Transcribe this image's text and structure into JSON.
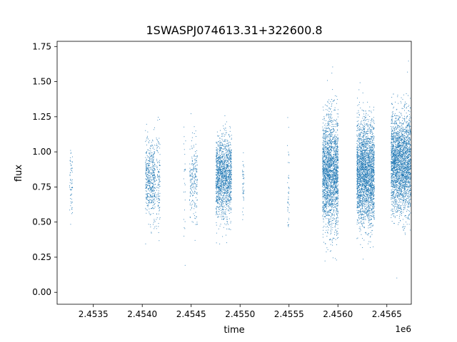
{
  "chart_data": {
    "type": "scatter",
    "title": "1SWASPJ074613.31+322600.8",
    "xlabel": "time",
    "ylabel": "flux",
    "x_offset_label": "1e6",
    "xlim": [
      2.45313,
      2.45675
    ],
    "ylim": [
      -0.085,
      1.787
    ],
    "x_ticks": [
      {
        "value": 2.4535,
        "label": "2.4535"
      },
      {
        "value": 2.454,
        "label": "2.4540"
      },
      {
        "value": 2.4545,
        "label": "2.4545"
      },
      {
        "value": 2.455,
        "label": "2.4550"
      },
      {
        "value": 2.4555,
        "label": "2.4555"
      },
      {
        "value": 2.456,
        "label": "2.4560"
      },
      {
        "value": 2.4565,
        "label": "2.4565"
      }
    ],
    "y_ticks": [
      {
        "value": 0.0,
        "label": "0.00"
      },
      {
        "value": 0.25,
        "label": "0.25"
      },
      {
        "value": 0.5,
        "label": "0.50"
      },
      {
        "value": 0.75,
        "label": "0.75"
      },
      {
        "value": 1.0,
        "label": "1.00"
      },
      {
        "value": 1.25,
        "label": "1.25"
      },
      {
        "value": 1.5,
        "label": "1.50"
      },
      {
        "value": 1.75,
        "label": "1.75"
      }
    ],
    "grid": false,
    "point_color": "#1f77b4",
    "clusters": [
      {
        "x_center": 2.45327,
        "x_width": 3e-05,
        "n": 60,
        "y_center": 0.8,
        "y_spread": 0.13
      },
      {
        "x_center": 2.45408,
        "x_width": 0.0001,
        "n": 500,
        "y_center": 0.8,
        "y_spread": 0.13
      },
      {
        "x_center": 2.45416,
        "x_width": 4e-05,
        "n": 120,
        "y_center": 0.8,
        "y_spread": 0.18
      },
      {
        "x_center": 2.45443,
        "x_width": 2e-05,
        "n": 25,
        "y_center": 0.8,
        "y_spread": 0.25
      },
      {
        "x_center": 2.45452,
        "x_width": 8e-05,
        "n": 220,
        "y_center": 0.8,
        "y_spread": 0.15
      },
      {
        "x_center": 2.45483,
        "x_width": 0.00016,
        "n": 1500,
        "y_center": 0.82,
        "y_spread": 0.14
      },
      {
        "x_center": 2.45503,
        "x_width": 2e-05,
        "n": 40,
        "y_center": 0.8,
        "y_spread": 0.15
      },
      {
        "x_center": 2.45549,
        "x_width": 2e-05,
        "n": 40,
        "y_center": 0.7,
        "y_spread": 0.2
      },
      {
        "x_center": 2.45592,
        "x_width": 0.00016,
        "n": 2200,
        "y_center": 0.85,
        "y_spread": 0.2
      },
      {
        "x_center": 2.45628,
        "x_width": 0.00018,
        "n": 2600,
        "y_center": 0.85,
        "y_spread": 0.18
      },
      {
        "x_center": 2.45664,
        "x_width": 0.0002,
        "n": 2600,
        "y_center": 0.92,
        "y_spread": 0.17
      }
    ]
  }
}
